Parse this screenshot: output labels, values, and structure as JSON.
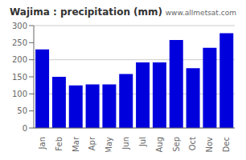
{
  "chart_data": {
    "type": "bar",
    "title": "Wajima : precipitation (mm)",
    "annotation": "www.allmetsat.com",
    "categories": [
      "Jan",
      "Feb",
      "Mar",
      "Apr",
      "May",
      "Jun",
      "Jul",
      "Aug",
      "Sep",
      "Oct",
      "Nov",
      "Dec"
    ],
    "values": [
      230,
      150,
      125,
      128,
      128,
      158,
      192,
      192,
      258,
      175,
      235,
      278
    ],
    "color": "#0000dd",
    "ylim": [
      0,
      300
    ],
    "yticks": [
      0,
      50,
      100,
      150,
      200,
      250,
      300
    ],
    "grid": true
  }
}
